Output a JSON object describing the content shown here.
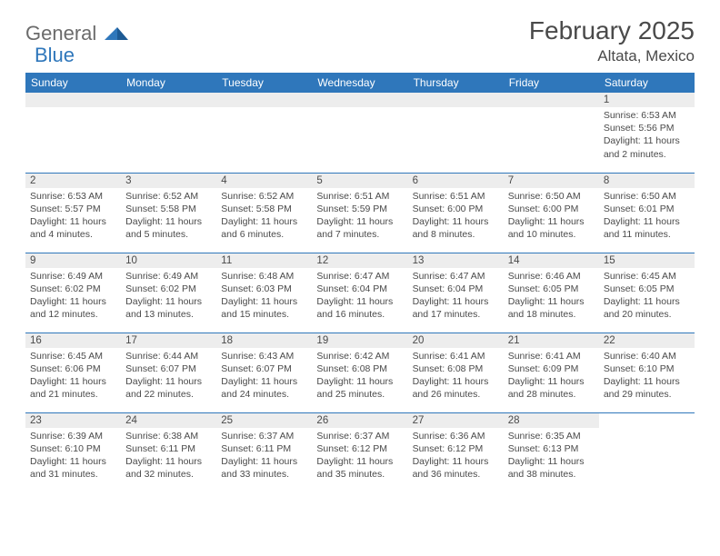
{
  "logo": {
    "text_general": "General",
    "text_blue": "Blue"
  },
  "header": {
    "month_title": "February 2025",
    "location": "Altata, Mexico"
  },
  "colors": {
    "header_bg": "#2f77bb",
    "header_text": "#ffffff",
    "daynum_bg": "#ededed",
    "rule": "#2f77bb",
    "body_text": "#4a4a4a"
  },
  "columns": [
    "Sunday",
    "Monday",
    "Tuesday",
    "Wednesday",
    "Thursday",
    "Friday",
    "Saturday"
  ],
  "weeks": [
    [
      {
        "empty": true
      },
      {
        "empty": true
      },
      {
        "empty": true
      },
      {
        "empty": true
      },
      {
        "empty": true
      },
      {
        "empty": true
      },
      {
        "n": "1",
        "sunrise": "Sunrise: 6:53 AM",
        "sunset": "Sunset: 5:56 PM",
        "dl1": "Daylight: 11 hours",
        "dl2": "and 2 minutes."
      }
    ],
    [
      {
        "n": "2",
        "sunrise": "Sunrise: 6:53 AM",
        "sunset": "Sunset: 5:57 PM",
        "dl1": "Daylight: 11 hours",
        "dl2": "and 4 minutes."
      },
      {
        "n": "3",
        "sunrise": "Sunrise: 6:52 AM",
        "sunset": "Sunset: 5:58 PM",
        "dl1": "Daylight: 11 hours",
        "dl2": "and 5 minutes."
      },
      {
        "n": "4",
        "sunrise": "Sunrise: 6:52 AM",
        "sunset": "Sunset: 5:58 PM",
        "dl1": "Daylight: 11 hours",
        "dl2": "and 6 minutes."
      },
      {
        "n": "5",
        "sunrise": "Sunrise: 6:51 AM",
        "sunset": "Sunset: 5:59 PM",
        "dl1": "Daylight: 11 hours",
        "dl2": "and 7 minutes."
      },
      {
        "n": "6",
        "sunrise": "Sunrise: 6:51 AM",
        "sunset": "Sunset: 6:00 PM",
        "dl1": "Daylight: 11 hours",
        "dl2": "and 8 minutes."
      },
      {
        "n": "7",
        "sunrise": "Sunrise: 6:50 AM",
        "sunset": "Sunset: 6:00 PM",
        "dl1": "Daylight: 11 hours",
        "dl2": "and 10 minutes."
      },
      {
        "n": "8",
        "sunrise": "Sunrise: 6:50 AM",
        "sunset": "Sunset: 6:01 PM",
        "dl1": "Daylight: 11 hours",
        "dl2": "and 11 minutes."
      }
    ],
    [
      {
        "n": "9",
        "sunrise": "Sunrise: 6:49 AM",
        "sunset": "Sunset: 6:02 PM",
        "dl1": "Daylight: 11 hours",
        "dl2": "and 12 minutes."
      },
      {
        "n": "10",
        "sunrise": "Sunrise: 6:49 AM",
        "sunset": "Sunset: 6:02 PM",
        "dl1": "Daylight: 11 hours",
        "dl2": "and 13 minutes."
      },
      {
        "n": "11",
        "sunrise": "Sunrise: 6:48 AM",
        "sunset": "Sunset: 6:03 PM",
        "dl1": "Daylight: 11 hours",
        "dl2": "and 15 minutes."
      },
      {
        "n": "12",
        "sunrise": "Sunrise: 6:47 AM",
        "sunset": "Sunset: 6:04 PM",
        "dl1": "Daylight: 11 hours",
        "dl2": "and 16 minutes."
      },
      {
        "n": "13",
        "sunrise": "Sunrise: 6:47 AM",
        "sunset": "Sunset: 6:04 PM",
        "dl1": "Daylight: 11 hours",
        "dl2": "and 17 minutes."
      },
      {
        "n": "14",
        "sunrise": "Sunrise: 6:46 AM",
        "sunset": "Sunset: 6:05 PM",
        "dl1": "Daylight: 11 hours",
        "dl2": "and 18 minutes."
      },
      {
        "n": "15",
        "sunrise": "Sunrise: 6:45 AM",
        "sunset": "Sunset: 6:05 PM",
        "dl1": "Daylight: 11 hours",
        "dl2": "and 20 minutes."
      }
    ],
    [
      {
        "n": "16",
        "sunrise": "Sunrise: 6:45 AM",
        "sunset": "Sunset: 6:06 PM",
        "dl1": "Daylight: 11 hours",
        "dl2": "and 21 minutes."
      },
      {
        "n": "17",
        "sunrise": "Sunrise: 6:44 AM",
        "sunset": "Sunset: 6:07 PM",
        "dl1": "Daylight: 11 hours",
        "dl2": "and 22 minutes."
      },
      {
        "n": "18",
        "sunrise": "Sunrise: 6:43 AM",
        "sunset": "Sunset: 6:07 PM",
        "dl1": "Daylight: 11 hours",
        "dl2": "and 24 minutes."
      },
      {
        "n": "19",
        "sunrise": "Sunrise: 6:42 AM",
        "sunset": "Sunset: 6:08 PM",
        "dl1": "Daylight: 11 hours",
        "dl2": "and 25 minutes."
      },
      {
        "n": "20",
        "sunrise": "Sunrise: 6:41 AM",
        "sunset": "Sunset: 6:08 PM",
        "dl1": "Daylight: 11 hours",
        "dl2": "and 26 minutes."
      },
      {
        "n": "21",
        "sunrise": "Sunrise: 6:41 AM",
        "sunset": "Sunset: 6:09 PM",
        "dl1": "Daylight: 11 hours",
        "dl2": "and 28 minutes."
      },
      {
        "n": "22",
        "sunrise": "Sunrise: 6:40 AM",
        "sunset": "Sunset: 6:10 PM",
        "dl1": "Daylight: 11 hours",
        "dl2": "and 29 minutes."
      }
    ],
    [
      {
        "n": "23",
        "sunrise": "Sunrise: 6:39 AM",
        "sunset": "Sunset: 6:10 PM",
        "dl1": "Daylight: 11 hours",
        "dl2": "and 31 minutes."
      },
      {
        "n": "24",
        "sunrise": "Sunrise: 6:38 AM",
        "sunset": "Sunset: 6:11 PM",
        "dl1": "Daylight: 11 hours",
        "dl2": "and 32 minutes."
      },
      {
        "n": "25",
        "sunrise": "Sunrise: 6:37 AM",
        "sunset": "Sunset: 6:11 PM",
        "dl1": "Daylight: 11 hours",
        "dl2": "and 33 minutes."
      },
      {
        "n": "26",
        "sunrise": "Sunrise: 6:37 AM",
        "sunset": "Sunset: 6:12 PM",
        "dl1": "Daylight: 11 hours",
        "dl2": "and 35 minutes."
      },
      {
        "n": "27",
        "sunrise": "Sunrise: 6:36 AM",
        "sunset": "Sunset: 6:12 PM",
        "dl1": "Daylight: 11 hours",
        "dl2": "and 36 minutes."
      },
      {
        "n": "28",
        "sunrise": "Sunrise: 6:35 AM",
        "sunset": "Sunset: 6:13 PM",
        "dl1": "Daylight: 11 hours",
        "dl2": "and 38 minutes."
      },
      {
        "empty": true,
        "noBar": true
      }
    ]
  ]
}
